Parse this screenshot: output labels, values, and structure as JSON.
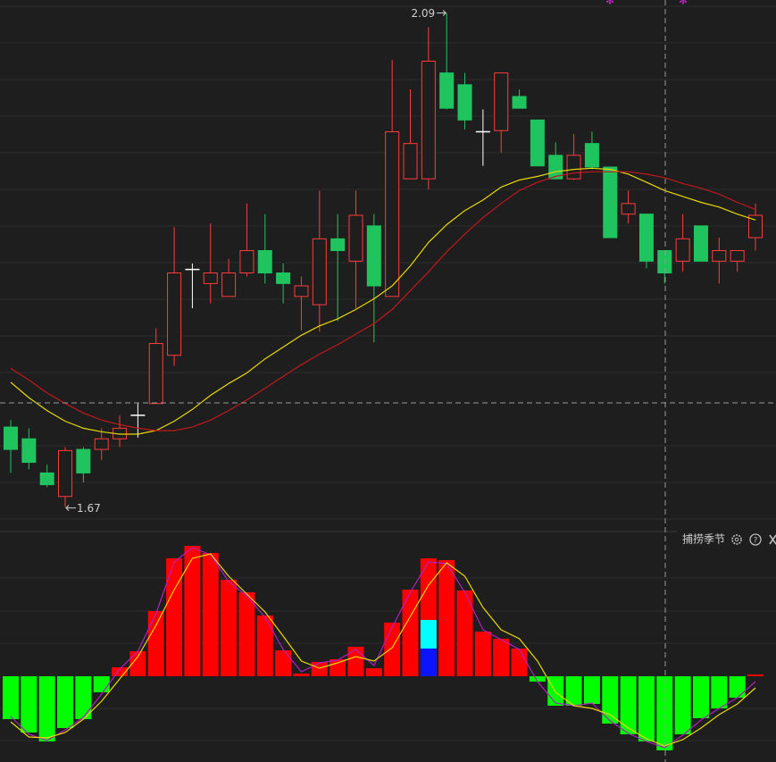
{
  "chart_data": [
    {
      "type": "candlestick",
      "open": [
        1.738,
        1.728,
        1.699,
        1.679,
        1.719,
        1.719,
        1.728,
        1.748,
        1.758,
        1.799,
        1.872,
        1.86,
        1.849,
        1.869,
        1.888,
        1.869,
        1.849,
        1.842,
        1.898,
        1.879,
        1.909,
        1.849,
        1.949,
        1.949,
        2.039,
        2.029,
        1.989,
        1.99,
        2.019,
        1.999,
        1.969,
        1.949,
        1.979,
        1.959,
        1.919,
        1.919,
        1.888,
        1.879,
        1.909,
        1.879,
        1.879,
        1.899
      ],
      "high": [
        1.744,
        1.737,
        1.706,
        1.721,
        1.721,
        1.737,
        1.748,
        1.758,
        1.822,
        1.908,
        1.877,
        1.911,
        1.881,
        1.928,
        1.919,
        1.877,
        1.866,
        1.939,
        1.919,
        1.939,
        1.919,
        2.05,
        2.025,
        2.078,
        2.09,
        2.039,
        2.008,
        2.039,
        2.025,
        1.999,
        1.98,
        1.987,
        1.989,
        1.959,
        1.939,
        1.919,
        1.888,
        1.919,
        1.909,
        1.899,
        1.888,
        1.928
      ],
      "low": [
        1.699,
        1.702,
        1.687,
        1.67,
        1.691,
        1.71,
        1.721,
        1.729,
        1.758,
        1.79,
        1.839,
        1.843,
        1.849,
        1.866,
        1.86,
        1.843,
        1.82,
        1.819,
        1.828,
        1.839,
        1.81,
        1.849,
        1.949,
        1.94,
        2.008,
        1.991,
        1.96,
        1.971,
        2.009,
        1.96,
        1.949,
        1.948,
        1.957,
        1.899,
        1.911,
        1.873,
        1.86,
        1.87,
        1.879,
        1.86,
        1.87,
        1.888
      ],
      "close": [
        1.719,
        1.708,
        1.689,
        1.718,
        1.699,
        1.728,
        1.737,
        1.748,
        1.809,
        1.869,
        1.872,
        1.869,
        1.869,
        1.888,
        1.869,
        1.86,
        1.858,
        1.898,
        1.888,
        1.918,
        1.858,
        1.989,
        1.979,
        2.049,
        2.009,
        1.999,
        1.989,
        2.039,
        2.009,
        1.96,
        1.949,
        1.969,
        1.959,
        1.899,
        1.928,
        1.879,
        1.869,
        1.898,
        1.879,
        1.888,
        1.888,
        1.918
      ],
      "up_color": "#ff3b3b",
      "down_color": "#1fc45f",
      "flat_color": "#ffffff",
      "series": [
        {
          "color": "#e8d800",
          "values": [
            1.776,
            1.763,
            1.752,
            1.743,
            1.737,
            1.734,
            1.732,
            1.732,
            1.735,
            1.743,
            1.753,
            1.765,
            1.775,
            1.784,
            1.796,
            1.806,
            1.816,
            1.824,
            1.83,
            1.838,
            1.847,
            1.858,
            1.875,
            1.895,
            1.91,
            1.922,
            1.931,
            1.942,
            1.948,
            1.951,
            1.955,
            1.957,
            1.958,
            1.957,
            1.953,
            1.946,
            1.939,
            1.934,
            1.929,
            1.925,
            1.919,
            1.914
          ]
        },
        {
          "color": "#c0181c",
          "values": [
            1.788,
            1.778,
            1.767,
            1.758,
            1.75,
            1.744,
            1.74,
            1.737,
            1.735,
            1.735,
            1.738,
            1.744,
            1.752,
            1.761,
            1.771,
            1.781,
            1.791,
            1.8,
            1.808,
            1.817,
            1.826,
            1.838,
            1.854,
            1.87,
            1.887,
            1.902,
            1.916,
            1.928,
            1.939,
            1.946,
            1.951,
            1.954,
            1.955,
            1.955,
            1.955,
            1.953,
            1.95,
            1.945,
            1.941,
            1.936,
            1.929,
            1.923
          ]
        }
      ],
      "annotations": [
        {
          "value": 2.09,
          "label": "2.09",
          "at": "high"
        },
        {
          "value": 1.67,
          "label": "1.67",
          "at": "low"
        }
      ],
      "ylim": [
        1.653,
        2.101
      ]
    },
    {
      "type": "histogram-oscillator",
      "title": "捕捞季节",
      "values": [
        -4.8,
        -6.3,
        -7.3,
        -5.8,
        -4.8,
        -1.8,
        1.0,
        2.8,
        7.3,
        13.2,
        14.6,
        13.8,
        10.8,
        9.4,
        6.8,
        2.9,
        0.3,
        1.6,
        1.9,
        3.3,
        0.9,
        6.0,
        9.7,
        13.2,
        13.0,
        9.6,
        5.0,
        4.2,
        3.1,
        -0.6,
        -3.3,
        -3.3,
        -3.1,
        -5.3,
        -6.5,
        -7.3,
        -8.3,
        -6.5,
        -4.7,
        -3.6,
        -2.4,
        0.2
      ],
      "up_color": "#ff0000",
      "down_color": "#00ff00",
      "stacked": [
        {
          "color": "#0a14ff",
          "values": [
            null,
            null,
            null,
            null,
            null,
            null,
            null,
            null,
            null,
            null,
            null,
            null,
            null,
            null,
            null,
            null,
            null,
            null,
            null,
            null,
            null,
            null,
            null,
            3.1,
            null,
            null,
            null,
            null,
            null,
            null,
            null,
            null,
            null,
            null,
            null,
            null,
            null,
            null,
            null,
            null,
            null,
            null
          ]
        },
        {
          "color": "#00ffff",
          "values": [
            null,
            null,
            null,
            null,
            null,
            null,
            null,
            null,
            null,
            null,
            null,
            null,
            null,
            null,
            null,
            null,
            null,
            null,
            null,
            null,
            null,
            null,
            null,
            3.2,
            null,
            null,
            null,
            null,
            null,
            null,
            null,
            null,
            null,
            null,
            null,
            null,
            null,
            null,
            null,
            null,
            null,
            null
          ]
        }
      ],
      "series": [
        {
          "color": "#b020c0",
          "values": [
            -4.5,
            -6.5,
            -7.2,
            -6.0,
            -4.6,
            -2.0,
            0.8,
            2.8,
            7.0,
            12.8,
            14.4,
            13.6,
            10.6,
            9.0,
            6.6,
            3.0,
            0.5,
            1.5,
            1.8,
            3.0,
            1.2,
            5.5,
            9.4,
            12.8,
            12.6,
            9.4,
            5.2,
            4.1,
            3.0,
            -0.6,
            -3.0,
            -3.3,
            -3.0,
            -5.0,
            -6.4,
            -7.3,
            -8.0,
            -6.6,
            -4.9,
            -3.6,
            -2.4,
            -0.6
          ]
        },
        {
          "color": "#e8d800",
          "values": [
            -5.1,
            -6.8,
            -6.9,
            -6.3,
            -4.8,
            -2.8,
            -0.3,
            2.2,
            5.7,
            9.7,
            13.2,
            13.7,
            11.2,
            9.2,
            7.2,
            4.5,
            1.7,
            0.9,
            1.5,
            2.2,
            1.7,
            3.2,
            6.7,
            10.2,
            12.7,
            11.2,
            7.7,
            5.2,
            4.2,
            1.7,
            -1.8,
            -3.3,
            -3.6,
            -4.3,
            -5.8,
            -7.0,
            -7.8,
            -7.1,
            -5.8,
            -4.3,
            -3.1,
            -1.3
          ]
        }
      ],
      "ylim": [
        -9.6,
        16.2
      ]
    }
  ]
}
